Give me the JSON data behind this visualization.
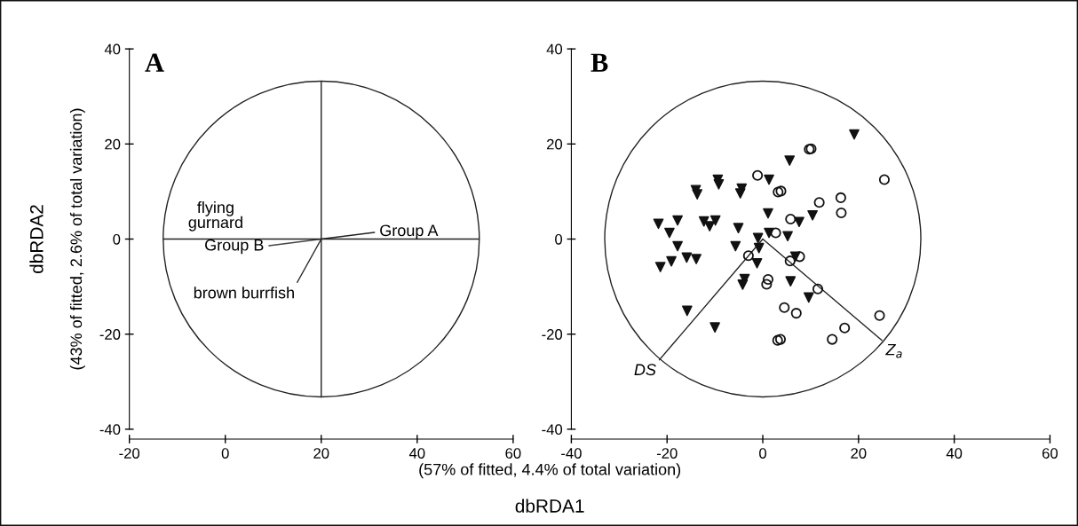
{
  "chart_data": [
    {
      "type": "scatter",
      "title": "A",
      "xlabel": "dbRDA1",
      "ylabel": "dbRDA2",
      "annotations": [
        "(43% of fitted, 2.6% of total variation)",
        "(57% of fitted, 4.4% of total variation)",
        "flying\ngurnard"
      ],
      "xlim": [
        -20,
        60
      ],
      "ylim": [
        -40,
        40
      ],
      "xticks": [
        -20,
        0,
        20,
        40,
        60
      ],
      "yticks": [
        -40,
        -20,
        0,
        20,
        40
      ],
      "ref_lines": [
        {
          "axis": "y",
          "value": 0,
          "color": "#222222"
        },
        {
          "axis": "x",
          "value": 20,
          "color": "#222222"
        }
      ],
      "series": [
        {
          "type": "line",
          "name": "Group A",
          "color": "#222222",
          "x": [
            20,
            31.1
          ],
          "values": [
            0,
            1.4
          ]
        },
        {
          "type": "line",
          "name": "Group B",
          "color": "#444444",
          "x": [
            20,
            9.1
          ],
          "values": [
            0,
            -1.4
          ]
        },
        {
          "type": "line",
          "name": "brown burrfish",
          "color": "#222222",
          "x": [
            20,
            15.0
          ],
          "values": [
            0,
            -9.1
          ]
        }
      ]
    },
    {
      "type": "scatter",
      "title": "B",
      "xlim": [
        -40,
        60
      ],
      "ylim": [
        -40,
        40
      ],
      "xticks": [
        -40,
        -20,
        0,
        20,
        40,
        60
      ],
      "yticks": [
        -40,
        -20,
        0,
        20,
        40
      ],
      "series": [
        {
          "type": "line",
          "name": "DS",
          "color": "#222222",
          "x": [
            0,
            -21.6
          ],
          "values": [
            0,
            -25.4
          ]
        },
        {
          "type": "line",
          "name": "Z$_{a}$",
          "color": "#222222",
          "x": [
            0,
            24.9
          ],
          "values": [
            0,
            -21.3
          ]
        },
        {
          "marker": "triangle",
          "color": "#111111",
          "x": [
            19.1,
            5.6,
            1.3,
            -9.4,
            -9.2,
            -14.0,
            -13.7,
            -4.4,
            -4.7,
            1.1,
            10.4,
            7.6,
            -21.8,
            -17.8,
            -19.5,
            -12.3,
            -11.1,
            -9.9,
            -5.1,
            -1.0,
            1.3,
            5.2,
            -5.7,
            -0.8,
            -17.8,
            -15.9,
            -13.9,
            -19.1,
            -21.4,
            -1.2,
            -3.8,
            -4.2,
            5.8,
            6.8,
            9.6,
            -15.8,
            -10.0
          ],
          "values": [
            22.0,
            16.5,
            12.5,
            12.5,
            11.5,
            10.3,
            9.4,
            10.6,
            9.6,
            5.4,
            5.0,
            3.6,
            3.2,
            3.9,
            1.3,
            3.7,
            2.7,
            3.9,
            2.3,
            0.2,
            1.3,
            0.6,
            -1.5,
            -1.9,
            -1.5,
            -3.9,
            -4.2,
            -4.7,
            -5.9,
            -5.1,
            -8.4,
            -9.6,
            -8.9,
            -3.7,
            -12.3,
            -15.1,
            -18.6
          ]
        },
        {
          "marker": "circle",
          "color": "#111111",
          "x": [
            9.7,
            10.1,
            -1.1,
            3.2,
            3.8,
            25.4,
            16.3,
            16.4,
            11.8,
            5.8,
            2.7,
            -3.0,
            7.7,
            5.7,
            1.1,
            0.8,
            11.5,
            4.5,
            7.0,
            24.4,
            17.1,
            14.5,
            3.1,
            3.7
          ],
          "values": [
            18.9,
            19.0,
            13.4,
            9.9,
            10.1,
            12.5,
            8.7,
            5.5,
            7.7,
            4.2,
            1.3,
            -3.5,
            -3.7,
            -4.6,
            -8.5,
            -9.5,
            -10.5,
            -14.4,
            -15.6,
            -16.1,
            -18.7,
            -21.1,
            -21.3,
            -21.1
          ]
        }
      ]
    }
  ]
}
